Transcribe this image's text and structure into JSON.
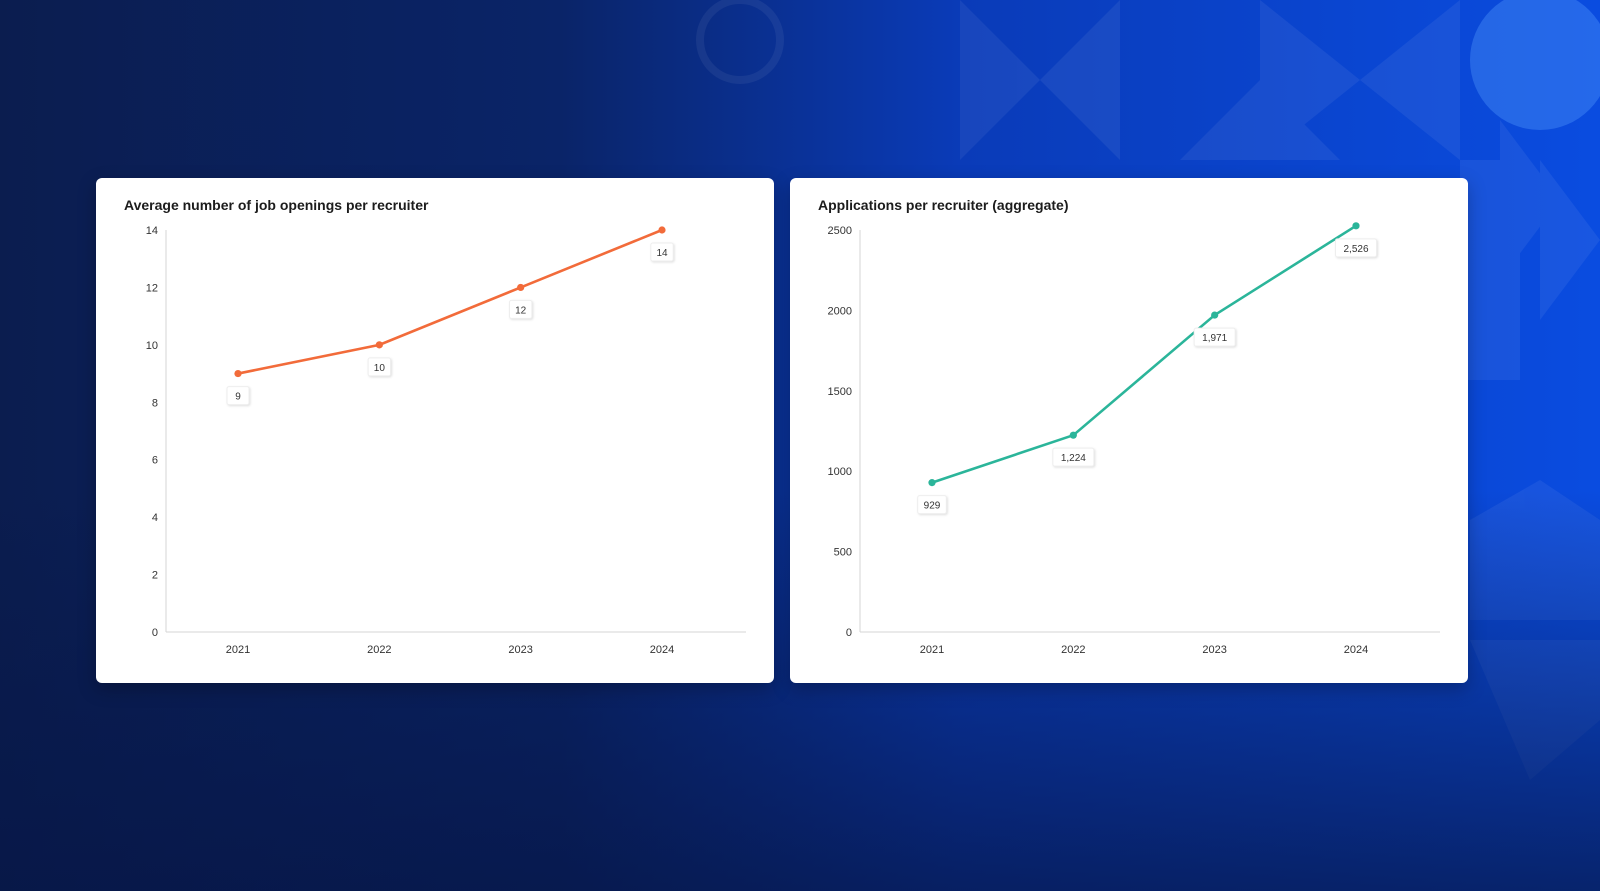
{
  "colors": {
    "background_start": "#0b1d4f",
    "background_end": "#0a4ce0",
    "card": "#ffffff",
    "series_orange": "#f26b3a",
    "series_teal": "#2bb59a",
    "axis": "#d6d6d6"
  },
  "chart_data": [
    {
      "type": "line",
      "title": "Average number of job openings per recruiter",
      "xlabel": "",
      "ylabel": "",
      "categories": [
        "2021",
        "2022",
        "2023",
        "2024"
      ],
      "series": [
        {
          "values": [
            9,
            10,
            12,
            14
          ],
          "labels": [
            "9",
            "10",
            "12",
            "14"
          ],
          "color": "#f26b3a"
        }
      ],
      "ylim": [
        0,
        14
      ],
      "yticks": [
        0,
        2,
        4,
        6,
        8,
        10,
        12,
        14
      ],
      "grid": false,
      "legend": "none"
    },
    {
      "type": "line",
      "title": "Applications per recruiter (aggregate)",
      "xlabel": "",
      "ylabel": "",
      "categories": [
        "2021",
        "2022",
        "2023",
        "2024"
      ],
      "series": [
        {
          "values": [
            929,
            1224,
            1971,
            2526
          ],
          "labels": [
            "929",
            "1,224",
            "1,971",
            "2,526"
          ],
          "color": "#2bb59a"
        }
      ],
      "ylim": [
        0,
        2500
      ],
      "yticks": [
        0,
        500,
        1000,
        1500,
        2000,
        2500
      ],
      "grid": false,
      "legend": "none"
    }
  ]
}
